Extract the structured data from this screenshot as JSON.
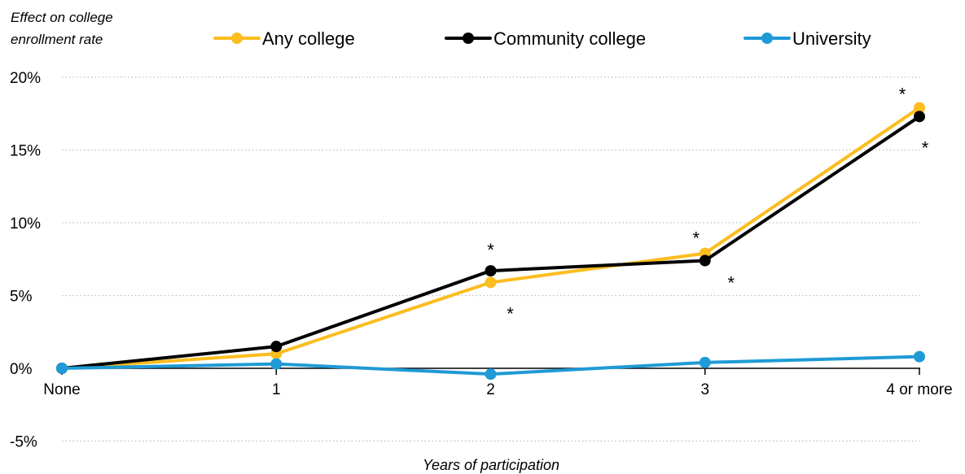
{
  "chart_data": {
    "type": "line",
    "ylabel_lines": [
      "Effect on college",
      "enrollment rate"
    ],
    "xlabel": "Years of participation",
    "categories": [
      "None",
      "1",
      "2",
      "3",
      "4 or more"
    ],
    "ylim": [
      -5,
      20
    ],
    "yticks": [
      -5,
      0,
      5,
      10,
      15,
      20
    ],
    "ytick_labels": [
      "-5%",
      "0%",
      "5%",
      "10%",
      "15%",
      "20%"
    ],
    "grid": "horizontal dotted",
    "legend_position": "top",
    "series": [
      {
        "name": "Any college",
        "color": "#FBBD1F",
        "values": [
          0,
          1.0,
          5.9,
          7.9,
          17.9
        ]
      },
      {
        "name": "Community college",
        "color": "#000000",
        "values": [
          0,
          1.5,
          6.7,
          7.4,
          17.3
        ]
      },
      {
        "name": "University",
        "color": "#1F9AD6",
        "values": [
          0,
          0.3,
          -0.4,
          0.4,
          0.8
        ]
      }
    ],
    "significance_marker": "*",
    "significance_points": [
      {
        "series": "Community college",
        "category": "2"
      },
      {
        "series": "Any college",
        "category": "2"
      },
      {
        "series": "Any college",
        "category": "3"
      },
      {
        "series": "Community college",
        "category": "3"
      },
      {
        "series": "Any college",
        "category": "4 or more"
      },
      {
        "series": "Community college",
        "category": "4 or more"
      }
    ]
  }
}
